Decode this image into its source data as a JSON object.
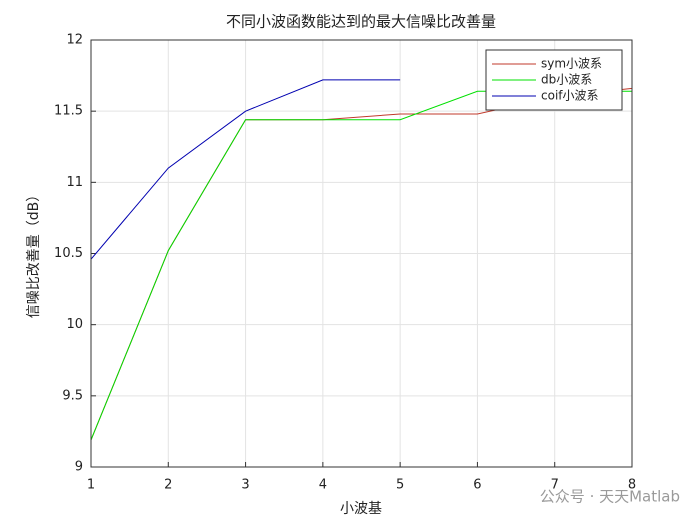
{
  "chart_data": {
    "type": "line",
    "title": "不同小波函数能达到的最大信噪比改善量",
    "x_label": "小波基",
    "y_label": "信噪比改善量（dB）",
    "x": [
      1,
      2,
      3,
      4,
      5,
      6,
      7,
      8
    ],
    "series": [
      {
        "name": "sym小波系",
        "color": "#c0392b",
        "values": [
          9.19,
          10.52,
          11.44,
          11.44,
          11.48,
          11.48,
          11.6,
          11.66
        ]
      },
      {
        "name": "db小波系",
        "color": "#00e000",
        "values": [
          9.19,
          10.52,
          11.44,
          11.44,
          11.44,
          11.64,
          11.64,
          11.64
        ]
      },
      {
        "name": "coif小波系",
        "color": "#0000b0",
        "values": [
          10.46,
          11.1,
          11.5,
          11.72,
          11.72,
          null,
          null,
          null
        ]
      }
    ],
    "xlim": [
      1,
      8
    ],
    "xticks": [
      1,
      2,
      3,
      4,
      5,
      6,
      7,
      8
    ],
    "ylim": [
      9,
      12
    ],
    "yticks": [
      9,
      {
        "value": 9.5,
        "label": "9.5"
      },
      10,
      {
        "value": 10.5,
        "label": "10.5"
      },
      11,
      {
        "value": 11.5,
        "label": "11.5"
      },
      12
    ],
    "grid": true,
    "legend": "top-right",
    "watermark": "公众号 · 天天Matlab"
  }
}
